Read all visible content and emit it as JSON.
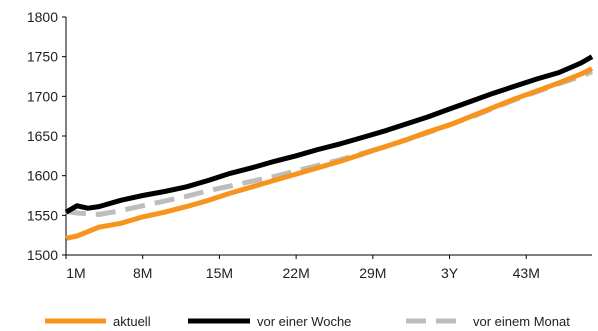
{
  "chart_data": {
    "type": "line",
    "title": "",
    "xlabel": "",
    "ylabel": "",
    "ylim": [
      1500,
      1800
    ],
    "yticks": [
      1500,
      1550,
      1600,
      1650,
      1700,
      1750,
      1800
    ],
    "x_tick_labels": [
      "1M",
      "8M",
      "15M",
      "22M",
      "29M",
      "3Y",
      "43M"
    ],
    "x_tick_positions": [
      1,
      8,
      15,
      22,
      29,
      36,
      43
    ],
    "xlim": [
      1,
      49
    ],
    "grid": false,
    "legend_placement": "bottom",
    "series": [
      {
        "name": "aktuell",
        "color": "#f7941d",
        "dash": "solid",
        "x": [
          1,
          2,
          4,
          6,
          8,
          10,
          12,
          14,
          16,
          18,
          20,
          22,
          24,
          26,
          28,
          30,
          32,
          34,
          36,
          38,
          40,
          42,
          44,
          46,
          48,
          49
        ],
        "y": [
          1521,
          1524,
          1535,
          1540,
          1548,
          1554,
          1561,
          1569,
          1578,
          1586,
          1594,
          1602,
          1610,
          1618,
          1627,
          1636,
          1645,
          1655,
          1664,
          1675,
          1686,
          1697,
          1707,
          1717,
          1728,
          1735
        ]
      },
      {
        "name": "vor einer Woche",
        "color": "#000000",
        "dash": "solid",
        "x": [
          1,
          2,
          3,
          4,
          6,
          8,
          10,
          12,
          14,
          16,
          18,
          20,
          22,
          24,
          26,
          28,
          30,
          32,
          34,
          36,
          38,
          40,
          42,
          44,
          46,
          48,
          49
        ],
        "y": [
          1554,
          1562,
          1559,
          1561,
          1569,
          1575,
          1580,
          1586,
          1594,
          1603,
          1610,
          1618,
          1625,
          1633,
          1640,
          1648,
          1656,
          1665,
          1674,
          1684,
          1694,
          1704,
          1713,
          1722,
          1730,
          1742,
          1750
        ]
      },
      {
        "name": "vor einem Monat",
        "color": "#bdbdbd",
        "dash": "dashed",
        "x": [
          1,
          2,
          4,
          6,
          8,
          10,
          12,
          14,
          16,
          18,
          20,
          22,
          24,
          26,
          28,
          30,
          32,
          34,
          36,
          38,
          40,
          42,
          44,
          46,
          48,
          49
        ],
        "y": [
          1555,
          1553,
          1551,
          1556,
          1562,
          1568,
          1574,
          1581,
          1587,
          1593,
          1599,
          1606,
          1613,
          1620,
          1628,
          1636,
          1645,
          1654,
          1664,
          1674,
          1685,
          1696,
          1706,
          1716,
          1725,
          1731
        ]
      }
    ]
  }
}
